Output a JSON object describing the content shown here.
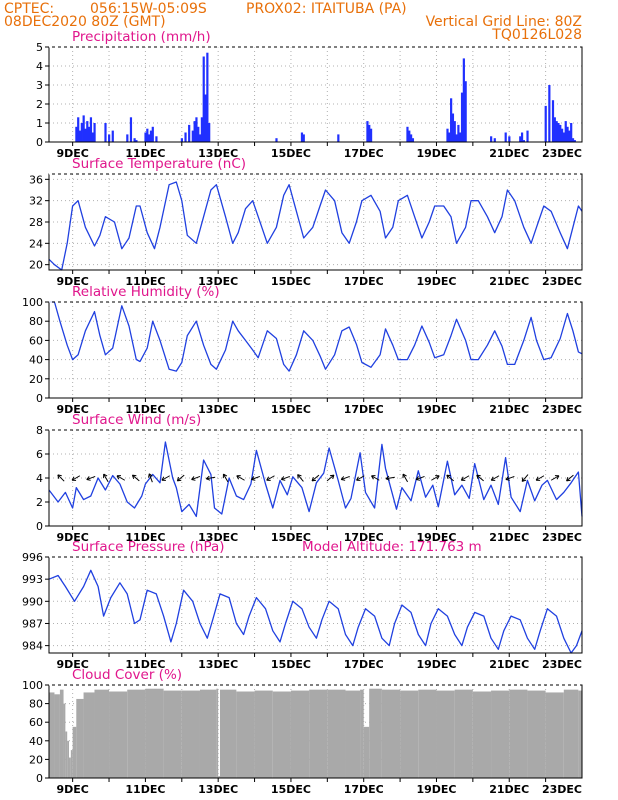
{
  "header": {
    "source": "CPTEC:",
    "coords": "056:15W-05:09S",
    "location": "PROX02: ITAITUBA (PA)",
    "run": "08DEC2020 80Z (GMT)",
    "grid_note": "Vertical Grid Line: 80Z",
    "model": "TQ0126L028"
  },
  "colors": {
    "line": "#2040e0",
    "bar": "#2030ff",
    "cloud": "#a9a9a9",
    "header": "#e8700a",
    "title": "#e0168c",
    "arrow": "#000000"
  },
  "chart_data": [
    {
      "id": "precipitation",
      "type": "bar",
      "title": "Precipitation (mm/h)",
      "ylim": [
        0,
        5
      ],
      "yticks": [
        0,
        1,
        2,
        3,
        4,
        5
      ],
      "xlim": [
        8.35,
        23
      ],
      "xticks": [
        "9DEC",
        "11DEC",
        "13DEC",
        "15DEC",
        "17DEC",
        "19DEC",
        "21DEC",
        "23DEC"
      ],
      "series": [
        {
          "x": [
            9.1,
            9.15,
            9.2,
            9.25,
            9.3,
            9.35,
            9.4,
            9.45,
            9.5,
            9.55,
            9.6,
            9.9,
            10.0,
            10.1,
            10.5,
            10.6,
            10.7,
            10.75,
            11.0,
            11.05,
            11.1,
            11.15,
            11.2,
            11.3,
            12.0,
            12.1,
            12.2,
            12.3,
            12.35,
            12.4,
            12.45,
            12.5,
            12.55,
            12.6,
            12.65,
            12.7,
            12.75,
            14.6,
            15.3,
            15.35,
            16.3,
            17.1,
            17.15,
            17.2,
            18.2,
            18.25,
            18.3,
            18.35,
            19.3,
            19.35,
            19.4,
            19.45,
            19.5,
            19.55,
            19.6,
            19.65,
            19.7,
            19.75,
            19.8,
            20.5,
            20.6,
            20.9,
            21.0,
            21.3,
            21.35,
            21.4,
            21.5,
            22.0,
            22.1,
            22.2,
            22.25,
            22.3,
            22.35,
            22.4,
            22.45,
            22.5,
            22.55,
            22.6,
            22.65,
            22.7,
            22.75,
            22.8
          ],
          "y": [
            0.8,
            1.3,
            0.6,
            1.0,
            1.4,
            0.7,
            1.1,
            0.8,
            1.3,
            0.5,
            1.0,
            1.0,
            0.4,
            0.6,
            0.4,
            1.3,
            0.2,
            0.1,
            0.5,
            0.7,
            0.4,
            0.6,
            0.8,
            0.3,
            0.2,
            0.5,
            0.9,
            0.6,
            1.1,
            1.3,
            0.8,
            0.4,
            1.3,
            4.5,
            2.5,
            4.7,
            1.0,
            0.2,
            0.5,
            0.4,
            0.4,
            1.1,
            0.9,
            0.7,
            0.8,
            0.6,
            0.4,
            0.2,
            0.7,
            0.5,
            2.3,
            1.5,
            1.1,
            0.4,
            0.9,
            0.5,
            2.6,
            4.4,
            3.2,
            0.3,
            0.2,
            0.5,
            0.3,
            0.3,
            0.5,
            0.1,
            0.6,
            1.9,
            3.0,
            2.2,
            1.3,
            1.1,
            1.0,
            0.9,
            0.7,
            0.5,
            1.1,
            0.8,
            0.6,
            1.0,
            0.2,
            0.1
          ]
        }
      ]
    },
    {
      "id": "temperature",
      "type": "line",
      "title": "Surface Temperature (nC)",
      "ylim": [
        19,
        37
      ],
      "yticks": [
        20,
        24,
        28,
        32,
        36
      ],
      "xlim": [
        8.35,
        23
      ],
      "xticks": [
        "9DEC",
        "11DEC",
        "13DEC",
        "15DEC",
        "17DEC",
        "19DEC",
        "21DEC",
        "23DEC"
      ],
      "series": [
        {
          "x": [
            8.35,
            8.5,
            8.7,
            8.85,
            9.0,
            9.15,
            9.35,
            9.6,
            9.75,
            9.9,
            10.15,
            10.35,
            10.55,
            10.75,
            10.85,
            11.05,
            11.25,
            11.4,
            11.65,
            11.85,
            12.0,
            12.15,
            12.4,
            12.6,
            12.8,
            12.95,
            13.2,
            13.4,
            13.55,
            13.75,
            13.95,
            14.1,
            14.35,
            14.6,
            14.8,
            14.95,
            15.15,
            15.35,
            15.6,
            15.8,
            15.95,
            16.2,
            16.4,
            16.6,
            16.8,
            16.95,
            17.2,
            17.45,
            17.6,
            17.8,
            17.95,
            18.2,
            18.4,
            18.6,
            18.8,
            18.95,
            19.2,
            19.4,
            19.55,
            19.8,
            19.95,
            20.15,
            20.4,
            20.6,
            20.8,
            20.95,
            21.15,
            21.4,
            21.6,
            21.75,
            21.95,
            22.15,
            22.4,
            22.6,
            22.75,
            22.9,
            23.0
          ],
          "y": [
            21,
            20,
            19,
            24,
            31,
            32,
            27,
            23.5,
            25.5,
            29,
            28,
            23,
            25,
            31,
            31,
            26,
            23,
            27,
            35,
            35.5,
            32,
            25.5,
            24,
            29,
            34,
            35,
            29,
            24,
            26,
            30.5,
            32,
            29,
            24,
            27,
            33,
            35,
            30,
            25,
            27,
            31,
            34,
            32,
            26,
            24,
            28,
            32,
            33,
            30,
            25,
            27,
            32,
            33,
            29,
            25,
            28,
            31,
            31,
            29,
            24,
            27,
            32,
            32,
            29,
            26,
            29,
            34,
            32,
            27,
            24,
            27,
            31,
            30,
            26,
            23,
            27,
            31,
            30
          ]
        }
      ]
    },
    {
      "id": "humidity",
      "type": "line",
      "title": "Relative Humidity (%)",
      "ylim": [
        0,
        100
      ],
      "yticks": [
        0,
        20,
        40,
        60,
        80,
        100
      ],
      "xlim": [
        8.35,
        23
      ],
      "xticks": [
        "9DEC",
        "11DEC",
        "13DEC",
        "15DEC",
        "17DEC",
        "19DEC",
        "21DEC",
        "23DEC"
      ],
      "series": [
        {
          "x": [
            8.35,
            8.5,
            8.65,
            8.85,
            9.0,
            9.15,
            9.35,
            9.6,
            9.75,
            9.9,
            10.1,
            10.35,
            10.55,
            10.75,
            10.85,
            11.05,
            11.2,
            11.4,
            11.65,
            11.85,
            12.0,
            12.15,
            12.4,
            12.6,
            12.8,
            12.95,
            13.2,
            13.4,
            13.55,
            13.75,
            13.95,
            14.1,
            14.35,
            14.6,
            14.8,
            14.95,
            15.15,
            15.35,
            15.6,
            15.8,
            15.95,
            16.2,
            16.4,
            16.6,
            16.8,
            16.95,
            17.2,
            17.45,
            17.6,
            17.8,
            17.95,
            18.2,
            18.4,
            18.6,
            18.8,
            18.95,
            19.2,
            19.4,
            19.55,
            19.8,
            19.95,
            20.15,
            20.4,
            20.6,
            20.8,
            20.95,
            21.15,
            21.4,
            21.6,
            21.75,
            21.95,
            22.15,
            22.4,
            22.6,
            22.75,
            22.9,
            23.0
          ],
          "y": [
            100,
            100,
            80,
            55,
            40,
            45,
            70,
            90,
            65,
            45,
            52,
            96,
            75,
            40,
            38,
            52,
            80,
            60,
            30,
            28,
            37,
            65,
            80,
            55,
            35,
            30,
            50,
            80,
            70,
            60,
            50,
            42,
            70,
            62,
            35,
            28,
            45,
            70,
            60,
            44,
            30,
            45,
            70,
            74,
            56,
            37,
            32,
            45,
            72,
            55,
            40,
            40,
            55,
            75,
            58,
            42,
            45,
            65,
            82,
            60,
            40,
            40,
            55,
            70,
            54,
            35,
            35,
            60,
            84,
            60,
            40,
            42,
            62,
            88,
            70,
            48,
            46
          ]
        }
      ]
    },
    {
      "id": "wind",
      "type": "line",
      "title": "Surface Wind (m/s)",
      "ylim": [
        0,
        8
      ],
      "yticks": [
        0,
        2,
        4,
        6,
        8
      ],
      "xlim": [
        8.35,
        23
      ],
      "xticks": [
        "9DEC",
        "11DEC",
        "13DEC",
        "15DEC",
        "17DEC",
        "19DEC",
        "21DEC",
        "23DEC"
      ],
      "series": [
        {
          "x": [
            8.35,
            8.6,
            8.8,
            9.0,
            9.1,
            9.3,
            9.5,
            9.7,
            9.9,
            10.1,
            10.3,
            10.5,
            10.7,
            10.9,
            11.0,
            11.2,
            11.4,
            11.55,
            11.75,
            11.85,
            12.0,
            12.2,
            12.4,
            12.6,
            12.8,
            12.9,
            13.1,
            13.3,
            13.5,
            13.7,
            13.9,
            14.05,
            14.3,
            14.5,
            14.7,
            14.9,
            15.05,
            15.3,
            15.5,
            15.7,
            15.9,
            16.05,
            16.3,
            16.5,
            16.65,
            16.9,
            17.05,
            17.3,
            17.5,
            17.6,
            17.9,
            18.05,
            18.3,
            18.5,
            18.7,
            18.9,
            19.05,
            19.3,
            19.5,
            19.7,
            19.9,
            20.05,
            20.3,
            20.5,
            20.7,
            20.9,
            21.05,
            21.3,
            21.5,
            21.7,
            21.9,
            22.05,
            22.3,
            22.5,
            22.7,
            22.9,
            23.0
          ],
          "y": [
            3,
            2,
            2.8,
            1.5,
            3.2,
            2.2,
            2.5,
            4,
            3,
            4.2,
            3.5,
            2,
            1.5,
            2.5,
            3.5,
            4.3,
            3.6,
            7,
            4,
            3.2,
            1.2,
            1.8,
            0.8,
            5.5,
            4.3,
            1.5,
            1,
            4,
            2.5,
            2.2,
            3.5,
            6.3,
            3.5,
            1.5,
            3.8,
            2.6,
            4.1,
            3.2,
            1.2,
            3.6,
            4.4,
            6.5,
            3.8,
            1.5,
            2.3,
            6.1,
            2.8,
            1.5,
            6.8,
            4.8,
            1.4,
            3.2,
            2.1,
            4.6,
            2.4,
            3.4,
            1.6,
            5.4,
            2.6,
            3.4,
            2.3,
            5.2,
            2.2,
            3.4,
            1.8,
            5.7,
            2.4,
            1.2,
            3.8,
            2.1,
            3.4,
            3.8,
            2.2,
            2.8,
            3.6,
            4.5,
            0.8
          ]
        }
      ]
    },
    {
      "id": "pressure",
      "type": "line",
      "title": "Surface Pressure (hPa)",
      "annotation": "Model Altitude: 171.763 m",
      "ylim": [
        983,
        996
      ],
      "yticks": [
        984,
        987,
        990,
        993,
        996
      ],
      "xlim": [
        8.35,
        23
      ],
      "xticks": [
        "9DEC",
        "11DEC",
        "13DEC",
        "15DEC",
        "17DEC",
        "19DEC",
        "21DEC",
        "23DEC"
      ],
      "series": [
        {
          "x": [
            8.35,
            8.6,
            8.8,
            9.05,
            9.3,
            9.5,
            9.7,
            9.85,
            10.05,
            10.3,
            10.5,
            10.7,
            10.85,
            11.05,
            11.3,
            11.5,
            11.7,
            11.85,
            12.05,
            12.3,
            12.5,
            12.7,
            12.85,
            13.05,
            13.3,
            13.5,
            13.7,
            13.85,
            14.05,
            14.3,
            14.5,
            14.7,
            14.85,
            15.05,
            15.3,
            15.5,
            15.7,
            15.85,
            16.05,
            16.3,
            16.5,
            16.7,
            16.85,
            17.05,
            17.3,
            17.5,
            17.7,
            17.85,
            18.05,
            18.3,
            18.5,
            18.7,
            18.85,
            19.05,
            19.3,
            19.5,
            19.7,
            19.85,
            20.05,
            20.3,
            20.5,
            20.7,
            20.85,
            21.05,
            21.3,
            21.5,
            21.7,
            21.85,
            22.05,
            22.3,
            22.5,
            22.7,
            22.85,
            23.0
          ],
          "y": [
            993,
            993.5,
            992,
            990,
            992,
            994.2,
            992,
            988,
            990.5,
            992.5,
            991,
            987,
            987.5,
            991.5,
            991,
            988,
            984.5,
            987,
            991.5,
            990,
            987,
            985,
            987.5,
            991,
            990.5,
            987,
            985.5,
            988,
            990.5,
            989,
            986,
            984.5,
            987,
            990,
            989,
            986.5,
            985,
            987.5,
            990,
            989,
            985.5,
            984,
            986.5,
            989,
            988,
            985,
            984,
            987,
            989.5,
            988.5,
            985.5,
            984,
            987,
            989,
            988,
            985.5,
            984,
            986.5,
            988.5,
            988,
            985,
            983.5,
            986,
            988,
            987.5,
            985,
            983.5,
            986,
            989,
            988,
            985,
            983,
            984,
            986
          ]
        }
      ]
    },
    {
      "id": "cloud",
      "type": "bar",
      "title": "Cloud Cover (%)",
      "ylim": [
        0,
        100
      ],
      "yticks": [
        0,
        20,
        40,
        60,
        80,
        100
      ],
      "xlim": [
        8.35,
        23
      ],
      "xticks": [
        "9DEC",
        "11DEC",
        "13DEC",
        "15DEC",
        "17DEC",
        "19DEC",
        "21DEC",
        "23DEC"
      ],
      "series": [
        {
          "x": [
            8.35,
            8.5,
            8.65,
            8.75,
            8.8,
            8.85,
            8.9,
            8.95,
            9.0,
            9.1,
            9.3,
            9.6,
            10.0,
            10.5,
            11.0,
            11.5,
            12.0,
            12.5,
            12.95,
            13.0,
            13.05,
            13.5,
            14.0,
            14.5,
            15.0,
            15.5,
            16.0,
            16.5,
            16.9,
            17.0,
            17.15,
            17.5,
            18.0,
            18.5,
            19.0,
            19.5,
            20.0,
            20.5,
            21.0,
            21.5,
            22.0,
            22.5,
            22.9
          ],
          "y": [
            92,
            90,
            95,
            80,
            50,
            40,
            22,
            30,
            55,
            85,
            92,
            95,
            93,
            95,
            96,
            94,
            94,
            95,
            96,
            2,
            95,
            93,
            94,
            93,
            94,
            95,
            95,
            94,
            95,
            55,
            96,
            95,
            94,
            95,
            94,
            95,
            93,
            94,
            95,
            94,
            92,
            95,
            94
          ]
        }
      ]
    }
  ]
}
